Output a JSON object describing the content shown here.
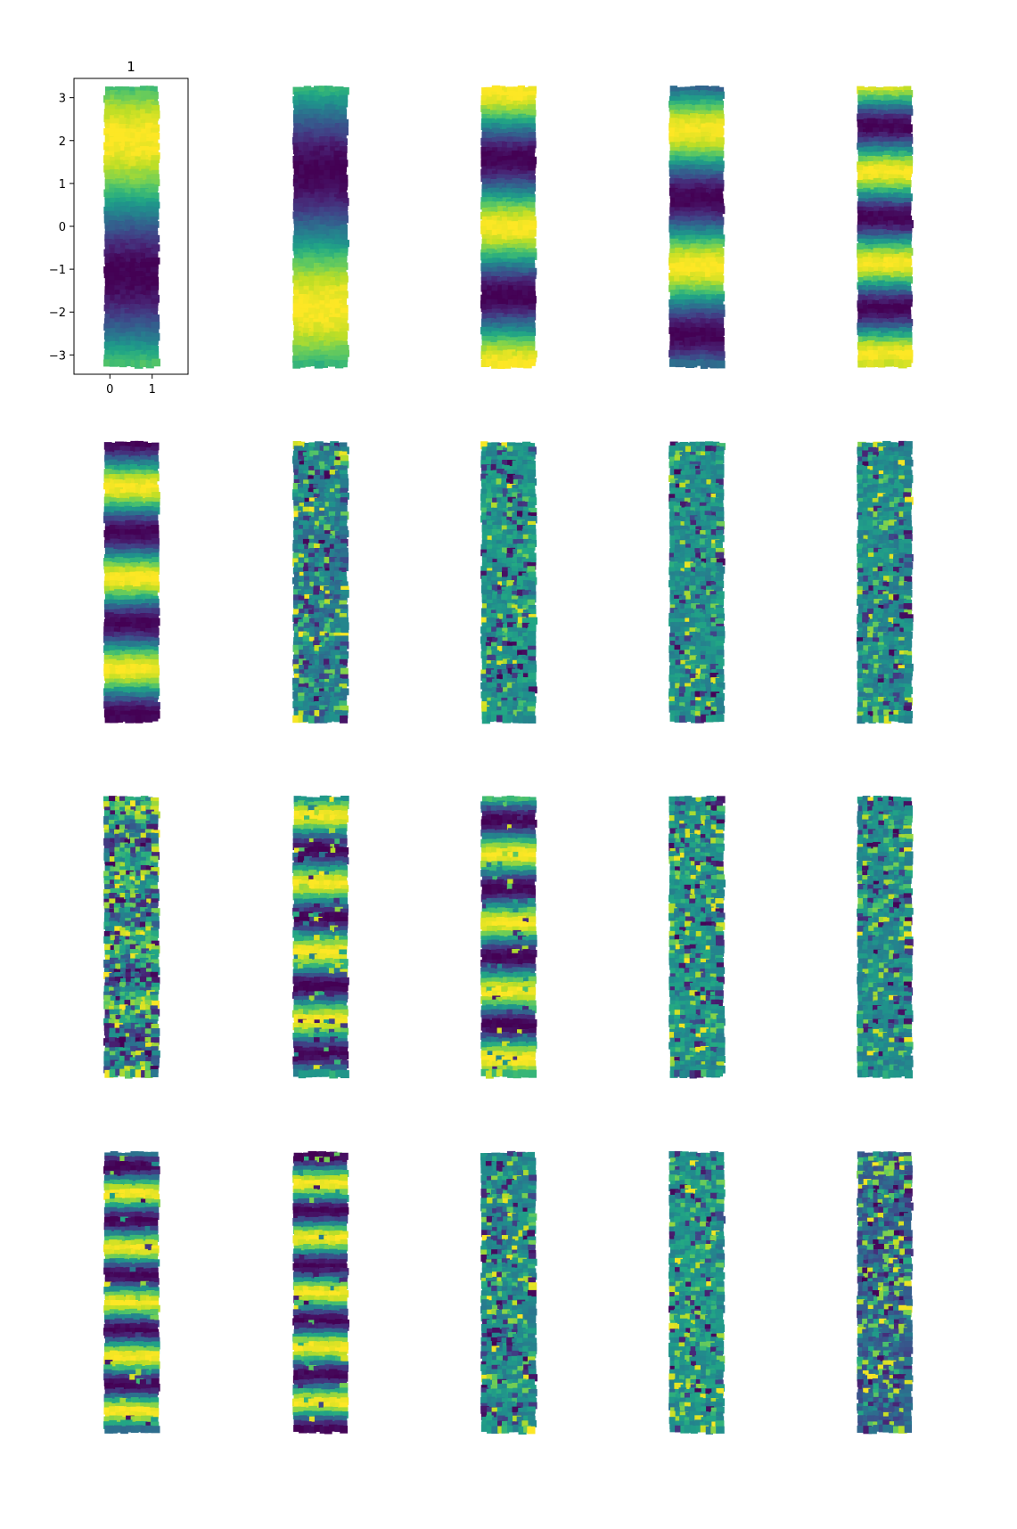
{
  "chart_data": {
    "type": "scatter",
    "layout": {
      "rows": 4,
      "cols": 5
    },
    "title": "1",
    "xticks": [
      0,
      1
    ],
    "yticks": [
      3,
      2,
      1,
      0,
      -1,
      -2,
      -3
    ],
    "xlim": [
      -0.85,
      1.85
    ],
    "ylim": [
      -3.45,
      3.45
    ],
    "data_extent": {
      "x": [
        -0.1,
        1.1
      ],
      "y": [
        -3.2,
        3.2
      ]
    },
    "colormap": "viridis",
    "only_first_panel_has_axes": true,
    "panels": [
      {
        "index": 1,
        "pattern": "smooth",
        "frequency": 1,
        "phase": 4.3,
        "fill": 1.0,
        "noise": 0.0
      },
      {
        "index": 2,
        "pattern": "smooth",
        "frequency": 1,
        "phase": 1.9,
        "fill": 1.0,
        "noise": 0.0
      },
      {
        "index": 3,
        "pattern": "smooth",
        "frequency": 2,
        "phase": 0.1,
        "fill": 1.0,
        "noise": 0.0
      },
      {
        "index": 4,
        "pattern": "smooth",
        "frequency": 2,
        "phase": 1.9,
        "fill": 1.0,
        "noise": 0.0
      },
      {
        "index": 5,
        "pattern": "smooth",
        "frequency": 3,
        "phase": 2.6,
        "fill": 1.0,
        "noise": 0.0
      },
      {
        "index": 6,
        "pattern": "smooth",
        "frequency": 3,
        "phase": -0.2,
        "fill": 1.0,
        "noise": 0.0
      },
      {
        "index": 7,
        "pattern": "noisy",
        "frequency": 0,
        "phase": 0,
        "fill": 0.42,
        "noise": 0.45
      },
      {
        "index": 8,
        "pattern": "noisy",
        "frequency": 0,
        "phase": 0,
        "fill": 0.52,
        "noise": 0.35
      },
      {
        "index": 9,
        "pattern": "noisy",
        "frequency": 0,
        "phase": 0,
        "fill": 0.5,
        "noise": 0.28
      },
      {
        "index": 10,
        "pattern": "noisy",
        "frequency": 0,
        "phase": 0,
        "fill": 0.48,
        "noise": 0.32
      },
      {
        "index": 11,
        "pattern": "noisy",
        "frequency": 4,
        "phase": 0.5,
        "fill": 0.45,
        "noise": 0.4
      },
      {
        "index": 12,
        "pattern": "smooth",
        "frequency": 4,
        "phase": 1.5,
        "fill": 0.55,
        "noise": 0.12
      },
      {
        "index": 13,
        "pattern": "smooth",
        "frequency": 4,
        "phase": -1.2,
        "fill": 0.6,
        "noise": 0.1
      },
      {
        "index": 14,
        "pattern": "noisy",
        "frequency": 0,
        "phase": 0,
        "fill": 0.52,
        "noise": 0.38
      },
      {
        "index": 15,
        "pattern": "noisy",
        "frequency": 0,
        "phase": 0,
        "fill": 0.48,
        "noise": 0.35
      },
      {
        "index": 16,
        "pattern": "smooth",
        "frequency": 5,
        "phase": 1.3,
        "fill": 0.65,
        "noise": 0.05
      },
      {
        "index": 17,
        "pattern": "smooth",
        "frequency": 5,
        "phase": 0.2,
        "fill": 0.55,
        "noise": 0.05
      },
      {
        "index": 18,
        "pattern": "noisy",
        "frequency": 0,
        "phase": 0,
        "fill": 0.48,
        "noise": 0.4
      },
      {
        "index": 19,
        "pattern": "noisy",
        "frequency": 0,
        "phase": 0,
        "fill": 0.52,
        "noise": 0.35
      },
      {
        "index": 20,
        "pattern": "noisy",
        "frequency": 0,
        "phase": 0,
        "fill": 0.32,
        "noise": 0.5
      }
    ]
  }
}
